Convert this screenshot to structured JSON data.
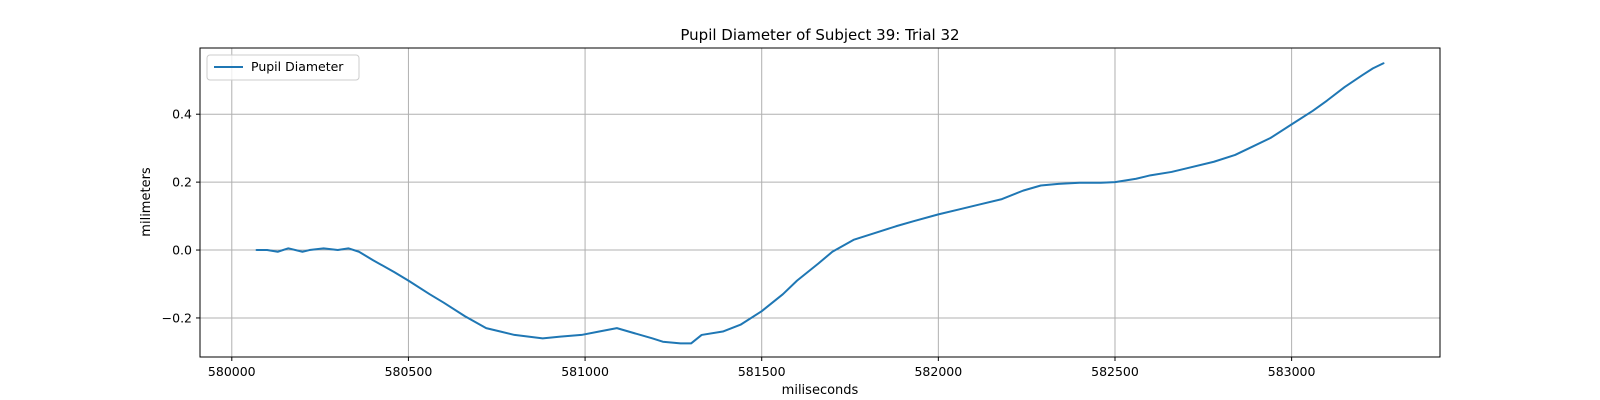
{
  "chart_data": {
    "type": "line",
    "title": "Pupil Diameter of Subject 39: Trial 32",
    "xlabel": "miliseconds",
    "ylabel": "milimeters",
    "xlim": [
      579910,
      583420
    ],
    "ylim": [
      -0.315,
      0.595
    ],
    "xticks": [
      580000,
      580500,
      581000,
      581500,
      582000,
      582500,
      583000
    ],
    "xtick_labels": [
      "580000",
      "580500",
      "581000",
      "581500",
      "582000",
      "582500",
      "583000"
    ],
    "yticks": [
      -0.2,
      0.0,
      0.2,
      0.4
    ],
    "ytick_labels": [
      "−0.2",
      "0.0",
      "0.2",
      "0.4"
    ],
    "grid": true,
    "legend": {
      "position": "top-left",
      "entries": [
        "Pupil Diameter"
      ]
    },
    "series": [
      {
        "name": "Pupil Diameter",
        "color": "#1f77b4",
        "x": [
          580070,
          580100,
          580130,
          580160,
          580200,
          580220,
          580260,
          580300,
          580330,
          580360,
          580400,
          580460,
          580500,
          580560,
          580600,
          580660,
          580720,
          580760,
          580800,
          580840,
          580880,
          580930,
          580990,
          581040,
          581090,
          581140,
          581190,
          581220,
          581270,
          581300,
          581330,
          581390,
          581440,
          581500,
          581560,
          581600,
          581660,
          581700,
          581760,
          581820,
          581880,
          581930,
          582000,
          582060,
          582120,
          582180,
          582240,
          582290,
          582340,
          582400,
          582460,
          582500,
          582560,
          582600,
          582660,
          582700,
          582780,
          582840,
          582880,
          582940,
          583000,
          583060,
          583100,
          583150,
          583200,
          583230,
          583260
        ],
        "y": [
          0.0,
          0.0,
          -0.005,
          0.005,
          -0.005,
          0.0,
          0.005,
          0.0,
          0.005,
          -0.005,
          -0.03,
          -0.065,
          -0.09,
          -0.13,
          -0.155,
          -0.195,
          -0.23,
          -0.24,
          -0.25,
          -0.255,
          -0.26,
          -0.255,
          -0.25,
          -0.24,
          -0.23,
          -0.245,
          -0.26,
          -0.27,
          -0.275,
          -0.275,
          -0.25,
          -0.24,
          -0.22,
          -0.18,
          -0.13,
          -0.09,
          -0.04,
          -0.005,
          0.03,
          0.05,
          0.07,
          0.085,
          0.105,
          0.12,
          0.135,
          0.15,
          0.175,
          0.19,
          0.195,
          0.198,
          0.198,
          0.2,
          0.21,
          0.22,
          0.23,
          0.24,
          0.26,
          0.28,
          0.3,
          0.33,
          0.37,
          0.41,
          0.44,
          0.48,
          0.515,
          0.535,
          0.55
        ]
      }
    ]
  }
}
